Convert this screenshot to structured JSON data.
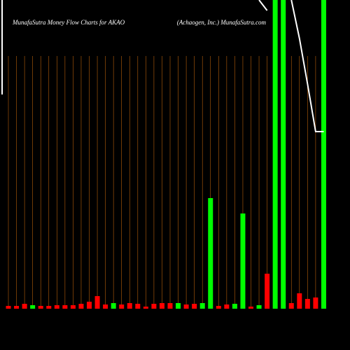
{
  "chart_data": {
    "type": "bar",
    "title": "MunafaSutra  Money Flow  Charts for AKAO",
    "subtitle": "(Achaogen,  Inc.) MunafaSutra.com",
    "categories": [
      null,
      null,
      null,
      null,
      null,
      null,
      null,
      null,
      null,
      null,
      null,
      null,
      null,
      null,
      null,
      null,
      null,
      null,
      null,
      null,
      null,
      null,
      null,
      null,
      null,
      null,
      null,
      null,
      null,
      null,
      null,
      null,
      null,
      null,
      null,
      null,
      null,
      null,
      null,
      null
    ],
    "values": [
      4,
      4,
      7,
      5,
      4,
      4,
      5,
      5,
      5,
      7,
      10,
      18,
      6,
      8,
      6,
      8,
      7,
      3,
      7,
      8,
      8,
      8,
      6,
      7,
      8,
      158,
      4,
      6,
      7,
      136,
      3,
      5,
      50,
      441,
      441,
      8,
      22,
      14,
      16,
      441
    ],
    "bar_colors": [
      "#ff0000",
      "#ff0000",
      "#ff0000",
      "#00ff00",
      "#ff0000",
      "#ff0000",
      "#ff0000",
      "#ff0000",
      "#ff0000",
      "#ff0000",
      "#ff0000",
      "#ff0000",
      "#ff0000",
      "#00ff00",
      "#ff0000",
      "#ff0000",
      "#ff0000",
      "#ff0000",
      "#ff0000",
      "#ff0000",
      "#ff0000",
      "#00ff00",
      "#ff0000",
      "#ff0000",
      "#00ff00",
      "#00ff00",
      "#ff0000",
      "#ff0000",
      "#00ff00",
      "#00ff00",
      "#ff0000",
      "#00ff00",
      "#ff0000",
      "#00ff00",
      "#00ff00",
      "#ff0000",
      "#ff0000",
      "#ff0000",
      "#ff0000",
      "#00ff00"
    ],
    "line": {
      "color": "#ffffff",
      "values": [
        null,
        null,
        null,
        null,
        null,
        null,
        null,
        null,
        null,
        null,
        null,
        null,
        null,
        null,
        null,
        null,
        null,
        null,
        null,
        null,
        null,
        null,
        null,
        null,
        null,
        null,
        null,
        null,
        null,
        null,
        null,
        441,
        426,
        null,
        null,
        441,
        386,
        321,
        253,
        253
      ]
    },
    "ylim": [
      0,
      441
    ],
    "grid": true,
    "grid_color": "#b8600a"
  }
}
